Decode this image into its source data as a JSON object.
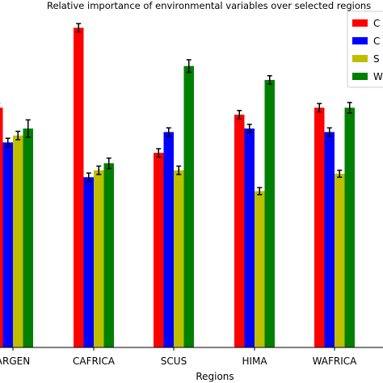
{
  "chart_data": {
    "type": "bar",
    "title": "Relative importance of environmental variables over selected regions",
    "xlabel": "Regions",
    "ylabel": "",
    "categories": [
      "ARGEN",
      "CAFRICA",
      "SCUS",
      "HIMA",
      "WAFRICA"
    ],
    "ylim": [
      0,
      1.0
    ],
    "grid": false,
    "legend_position": "top-right",
    "series": [
      {
        "name": "C",
        "color": "#ff0000",
        "values": [
          0.69,
          0.92,
          0.56,
          0.67,
          0.69
        ],
        "errors": [
          0.012,
          0.012,
          0.012,
          0.012,
          0.012
        ]
      },
      {
        "name": "C",
        "color": "#0000ff",
        "values": [
          0.59,
          0.49,
          0.62,
          0.63,
          0.62
        ],
        "errors": [
          0.012,
          0.012,
          0.012,
          0.012,
          0.012
        ]
      },
      {
        "name": "S",
        "color": "#bfbf00",
        "values": [
          0.61,
          0.51,
          0.51,
          0.45,
          0.5
        ],
        "errors": [
          0.012,
          0.012,
          0.012,
          0.01,
          0.01
        ]
      },
      {
        "name": "W",
        "color": "#008000",
        "values": [
          0.63,
          0.53,
          0.81,
          0.77,
          0.69
        ],
        "errors": [
          0.025,
          0.015,
          0.018,
          0.012,
          0.015
        ]
      }
    ]
  }
}
